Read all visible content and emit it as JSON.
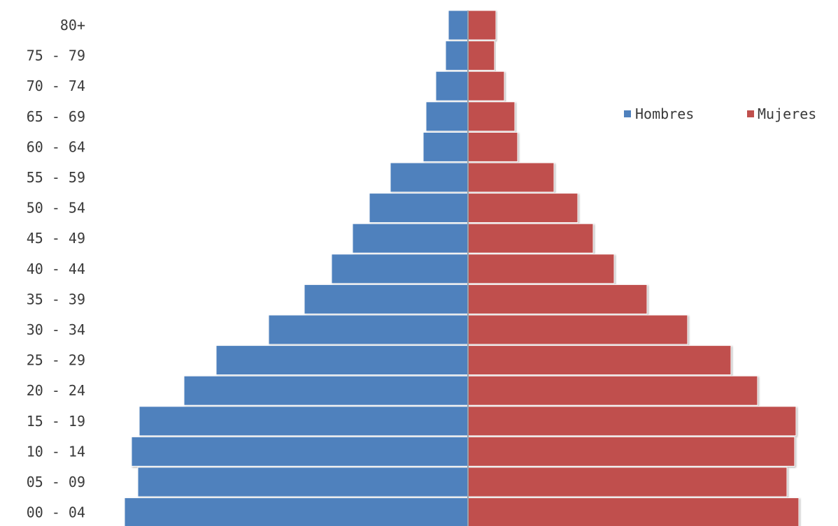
{
  "chart_data": {
    "type": "bar",
    "orientation": "horizontal",
    "layout": "population-pyramid",
    "categories": [
      "80+",
      "75 - 79",
      "70 - 74",
      "65 - 69",
      "60 - 64",
      "55 - 59",
      "50 - 54",
      "45 - 49",
      "40 - 44",
      "35 - 39",
      "30 - 34",
      "25 - 29",
      "20 - 24",
      "15 - 19",
      "10 - 14",
      "05 - 09",
      "00 - 04"
    ],
    "series": [
      {
        "name": "Hombres",
        "color": "#4f81bd",
        "side": "left",
        "values": [
          28,
          32,
          46,
          60,
          64,
          111,
          141,
          165,
          195,
          234,
          285,
          360,
          406,
          470,
          481,
          472,
          491
        ]
      },
      {
        "name": "Mujeres",
        "color": "#c0504d",
        "side": "right",
        "values": [
          40,
          38,
          52,
          67,
          71,
          123,
          157,
          179,
          209,
          256,
          314,
          376,
          414,
          469,
          467,
          456,
          473
        ]
      }
    ],
    "legend_position": "top-right",
    "grid": false,
    "axis_color": "#9aa3ad"
  }
}
